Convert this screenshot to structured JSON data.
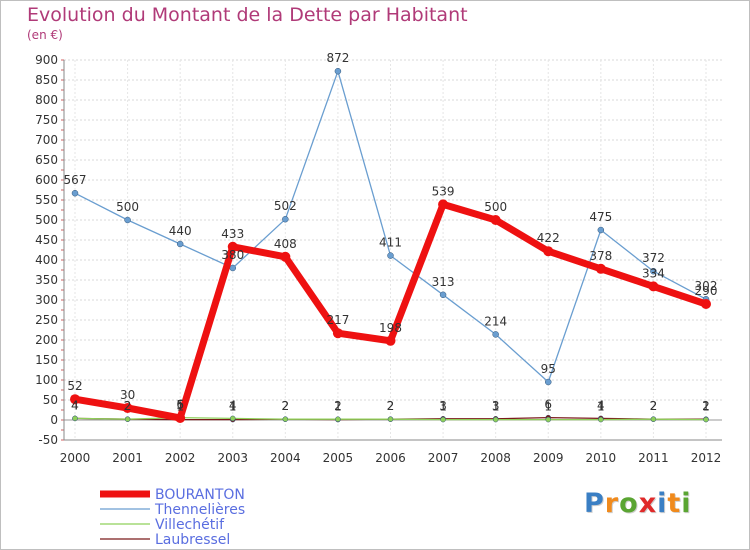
{
  "title": "Evolution du Montant de la Dette par Habitant",
  "unit_label": "(en €)",
  "logo": {
    "text": "Proxiti",
    "letters": [
      {
        "ch": "P",
        "color": "#3a7fc4"
      },
      {
        "ch": "r",
        "color": "#f08a1c"
      },
      {
        "ch": "o",
        "color": "#5aa532"
      },
      {
        "ch": "x",
        "color": "#e02a2a"
      },
      {
        "ch": "i",
        "color": "#3a7fc4"
      },
      {
        "ch": "t",
        "color": "#f08a1c"
      },
      {
        "ch": "i",
        "color": "#5aa532"
      }
    ]
  },
  "chart_data": {
    "type": "line",
    "title": "Evolution du Montant de la Dette par Habitant",
    "ylabel": "(en €)",
    "xlabel": "",
    "ylim": [
      -50,
      900
    ],
    "y_ticks": [
      -50,
      0,
      50,
      100,
      150,
      200,
      250,
      300,
      350,
      400,
      450,
      500,
      550,
      600,
      650,
      700,
      750,
      800,
      850,
      900
    ],
    "categories": [
      "2000",
      "2001",
      "2002",
      "2003",
      "2004",
      "2005",
      "2006",
      "2007",
      "2008",
      "2009",
      "2010",
      "2011",
      "2012"
    ],
    "grid": true,
    "legend_position": "bottom-left",
    "series": [
      {
        "name": "Laubressel",
        "color": "#7a1a1a",
        "values": [
          4,
          2,
          1,
          1,
          2,
          1,
          2,
          3,
          3,
          6,
          4,
          2,
          2
        ]
      },
      {
        "name": "Villechétif",
        "color": "#8fd05a",
        "values": [
          4,
          2,
          6,
          4,
          2,
          2,
          2,
          1,
          1,
          1,
          1,
          2,
          1
        ]
      },
      {
        "name": "Thennelières",
        "color": "#6a9ed0",
        "values": [
          567,
          500,
          440,
          380,
          502,
          872,
          411,
          313,
          214,
          95,
          475,
          372,
          302
        ]
      },
      {
        "name": "BOURANTON",
        "color": "#ee1111",
        "values": [
          52,
          30,
          5,
          433,
          408,
          217,
          198,
          539,
          500,
          422,
          378,
          334,
          290
        ]
      }
    ]
  }
}
